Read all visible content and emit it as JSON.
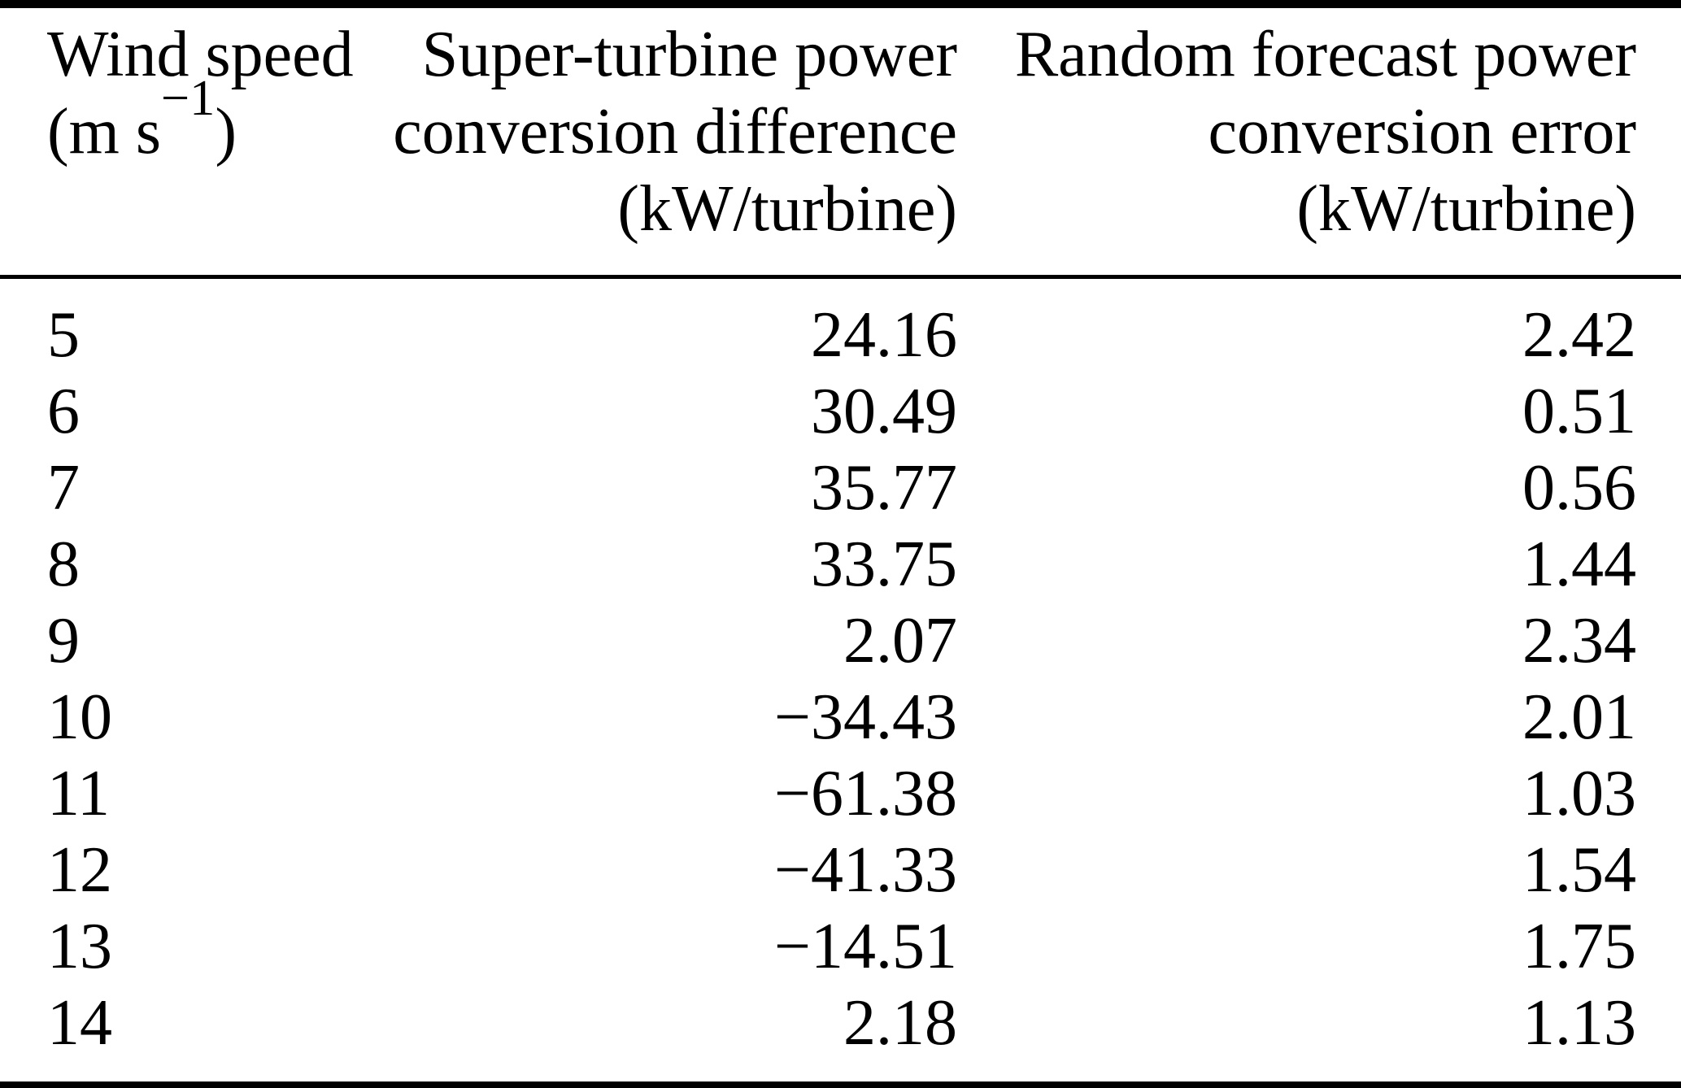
{
  "page": {
    "background_color": "#ffffff",
    "text_color": "#000000",
    "rule_color": "#000000"
  },
  "table": {
    "header": {
      "col1": {
        "line1": "Wind speed",
        "unit_prefix": "(m s",
        "unit_superscript": "−1",
        "unit_suffix": ")"
      },
      "col2": {
        "line1": "Super-turbine power",
        "line2": "conversion difference",
        "line3": "(kW/turbine)"
      },
      "col3": {
        "line1": "Random forecast power",
        "line2": "conversion error",
        "line3": "(kW/turbine)"
      }
    },
    "rows": [
      [
        "5",
        "24.16",
        "2.42"
      ],
      [
        "6",
        "30.49",
        "0.51"
      ],
      [
        "7",
        "35.77",
        "0.56"
      ],
      [
        "8",
        "33.75",
        "1.44"
      ],
      [
        "9",
        "2.07",
        "2.34"
      ],
      [
        "10",
        "−34.43",
        "2.01"
      ],
      [
        "11",
        "−61.38",
        "1.03"
      ],
      [
        "12",
        "−41.33",
        "1.54"
      ],
      [
        "13",
        "−14.51",
        "1.75"
      ],
      [
        "14",
        "2.18",
        "1.13"
      ]
    ]
  }
}
